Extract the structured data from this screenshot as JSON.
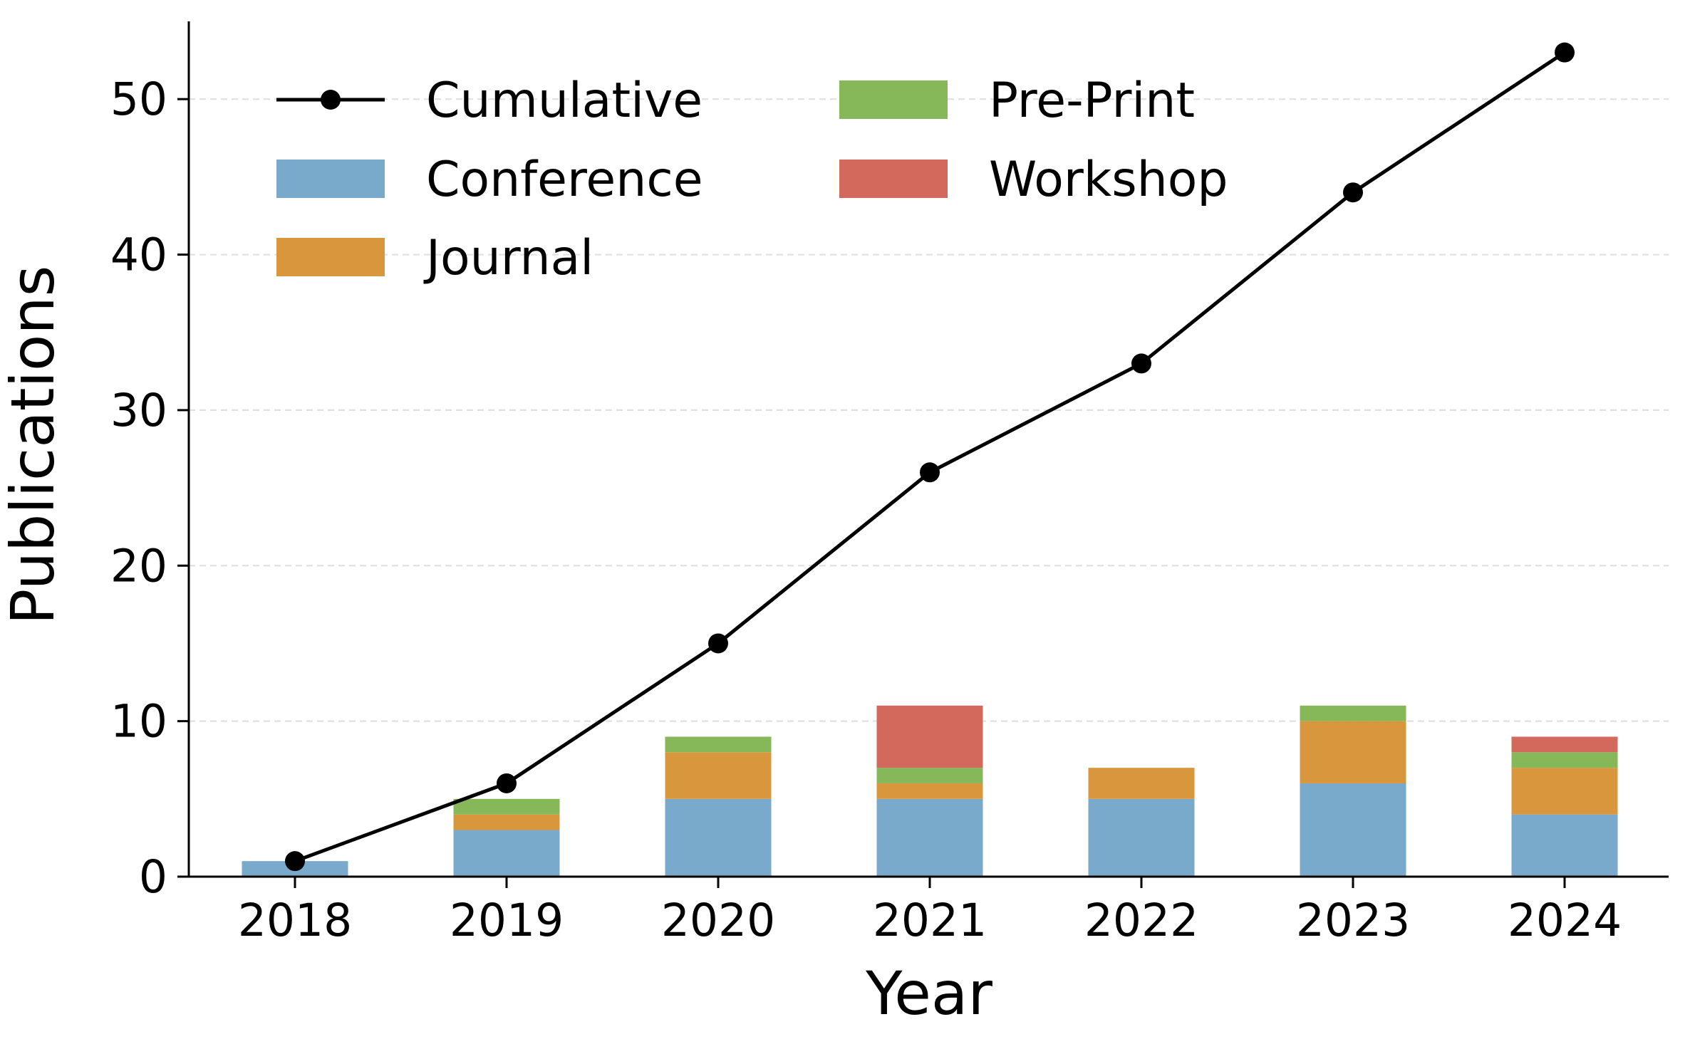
{
  "chart_data": {
    "type": "bar",
    "stacked": true,
    "title": "",
    "xlabel": "Year",
    "ylabel": "Publications",
    "categories": [
      "2018",
      "2019",
      "2020",
      "2021",
      "2022",
      "2023",
      "2024"
    ],
    "ylim": [
      0,
      55
    ],
    "yticks": [
      0,
      10,
      20,
      30,
      40,
      50
    ],
    "grid": "horizontal dashed",
    "legend_position": "top-left",
    "legend_columns": 2,
    "series": [
      {
        "name": "Conference",
        "kind": "bar",
        "color": "#7aaacb",
        "values": [
          1,
          3,
          5,
          5,
          5,
          6,
          4
        ]
      },
      {
        "name": "Journal",
        "kind": "bar",
        "color": "#d9973d",
        "values": [
          0,
          1,
          3,
          1,
          2,
          4,
          3
        ]
      },
      {
        "name": "Pre-Print",
        "kind": "bar",
        "color": "#86b85a",
        "values": [
          0,
          1,
          1,
          1,
          0,
          1,
          1
        ]
      },
      {
        "name": "Workshop",
        "kind": "bar",
        "color": "#d2695c",
        "values": [
          0,
          0,
          0,
          4,
          0,
          0,
          1
        ]
      },
      {
        "name": "Cumulative",
        "kind": "line",
        "color": "#000000",
        "values": [
          1,
          6,
          15,
          26,
          33,
          44,
          53
        ]
      }
    ],
    "legend_order": [
      "Cumulative",
      "Conference",
      "Journal",
      "Pre-Print",
      "Workshop"
    ]
  }
}
